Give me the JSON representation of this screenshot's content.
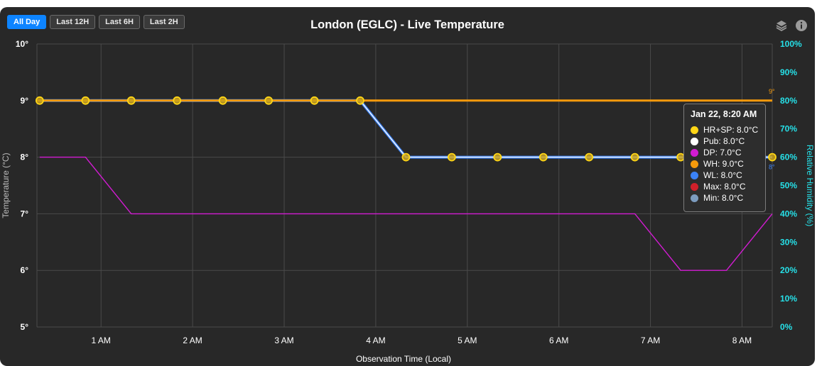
{
  "buttons": [
    {
      "label": "All Day",
      "active": true
    },
    {
      "label": "Last 12H",
      "active": false
    },
    {
      "label": "Last 6H",
      "active": false
    },
    {
      "label": "Last 2H",
      "active": false
    }
  ],
  "icons": [
    "layers-icon",
    "info-icon"
  ],
  "colors": {
    "background": "#282828",
    "grid": "#4a4a4a",
    "hrsp": "#ffd616",
    "pub": "#ffffff",
    "dp": "#d21bd2",
    "wh": "#f59a0c",
    "wl": "#3b82f6",
    "max": "#d0202a",
    "min": "#7c9cbf",
    "humidity_axis": "#26e0e8",
    "active_button": "#0d84ff"
  },
  "chart_data": {
    "type": "line",
    "title": "London (EGLC) - Live Temperature",
    "xlabel": "Observation Time (Local)",
    "ylabel": "Temperature (°C)",
    "y2label": "Relative Humidity (%)",
    "x_range": [
      0.3,
      8.33
    ],
    "x_ticks": [
      1,
      2,
      3,
      4,
      5,
      6,
      7,
      8
    ],
    "x_tick_labels": [
      "1 AM",
      "2 AM",
      "3 AM",
      "4 AM",
      "5 AM",
      "6 AM",
      "7 AM",
      "8 AM"
    ],
    "ylim": [
      5,
      10
    ],
    "y_ticks": [
      5,
      6,
      7,
      8,
      9,
      10
    ],
    "y_tick_labels": [
      "5°",
      "6°",
      "7°",
      "8°",
      "9°",
      "10°"
    ],
    "y2lim": [
      0,
      100
    ],
    "y2_ticks": [
      0,
      10,
      20,
      30,
      40,
      50,
      60,
      70,
      80,
      90,
      100
    ],
    "y2_tick_labels": [
      "0%",
      "10%",
      "20%",
      "30%",
      "40%",
      "50%",
      "60%",
      "70%",
      "80%",
      "90%",
      "100%"
    ],
    "grid": true,
    "series": [
      {
        "name": "HR+SP",
        "key": "hrsp",
        "style": "markers",
        "x": [
          0.33,
          0.83,
          1.33,
          1.83,
          2.33,
          2.83,
          3.33,
          3.83,
          4.33,
          4.83,
          5.33,
          5.83,
          6.33,
          6.83,
          7.33,
          7.83,
          8.33
        ],
        "y": [
          9,
          9,
          9,
          9,
          9,
          9,
          9,
          9,
          8,
          8,
          8,
          8,
          8,
          8,
          8,
          8,
          8
        ]
      },
      {
        "name": "Pub",
        "key": "pub",
        "style": "line",
        "x": [
          0.33,
          0.83,
          1.33,
          1.83,
          2.33,
          2.83,
          3.33,
          3.83,
          4.33,
          4.83,
          5.33,
          5.83,
          6.33,
          6.83,
          7.33,
          7.83,
          8.33
        ],
        "y": [
          9,
          9,
          9,
          9,
          9,
          9,
          9,
          9,
          8,
          8,
          8,
          8,
          8,
          8,
          8,
          8,
          8
        ]
      },
      {
        "name": "DP",
        "key": "dp",
        "style": "line",
        "x": [
          0.33,
          0.83,
          1.33,
          1.83,
          2.33,
          2.83,
          3.33,
          3.83,
          4.33,
          4.83,
          5.33,
          5.83,
          6.33,
          6.83,
          7.33,
          7.83,
          8.33
        ],
        "y": [
          8,
          8,
          7,
          7,
          7,
          7,
          7,
          7,
          7,
          7,
          7,
          7,
          7,
          7,
          6,
          6,
          7
        ]
      },
      {
        "name": "WH",
        "key": "wh",
        "style": "line",
        "x": [
          0.3,
          8.33
        ],
        "y": [
          9,
          9
        ],
        "end_label": "9°"
      },
      {
        "name": "WL",
        "key": "wl",
        "style": "line",
        "x": [
          0.33,
          0.83,
          1.33,
          1.83,
          2.33,
          2.83,
          3.33,
          3.83,
          4.33,
          4.83,
          5.33,
          5.83,
          6.33,
          6.83,
          7.33,
          7.83,
          8.33
        ],
        "y": [
          9,
          9,
          9,
          9,
          9,
          9,
          9,
          9,
          8,
          8,
          8,
          8,
          8,
          8,
          8,
          8,
          8
        ],
        "end_label": "8°"
      }
    ],
    "tooltip": {
      "title": "Jan 22, 8:20 AM",
      "rows": [
        {
          "key": "hrsp",
          "text": "HR+SP: 8.0°C"
        },
        {
          "key": "pub",
          "text": "Pub: 8.0°C"
        },
        {
          "key": "dp",
          "text": "DP: 7.0°C"
        },
        {
          "key": "wh",
          "text": "WH: 9.0°C"
        },
        {
          "key": "wl",
          "text": "WL: 8.0°C"
        },
        {
          "key": "max",
          "text": "Max: 8.0°C"
        },
        {
          "key": "min",
          "text": "Min: 8.0°C"
        }
      ]
    }
  }
}
